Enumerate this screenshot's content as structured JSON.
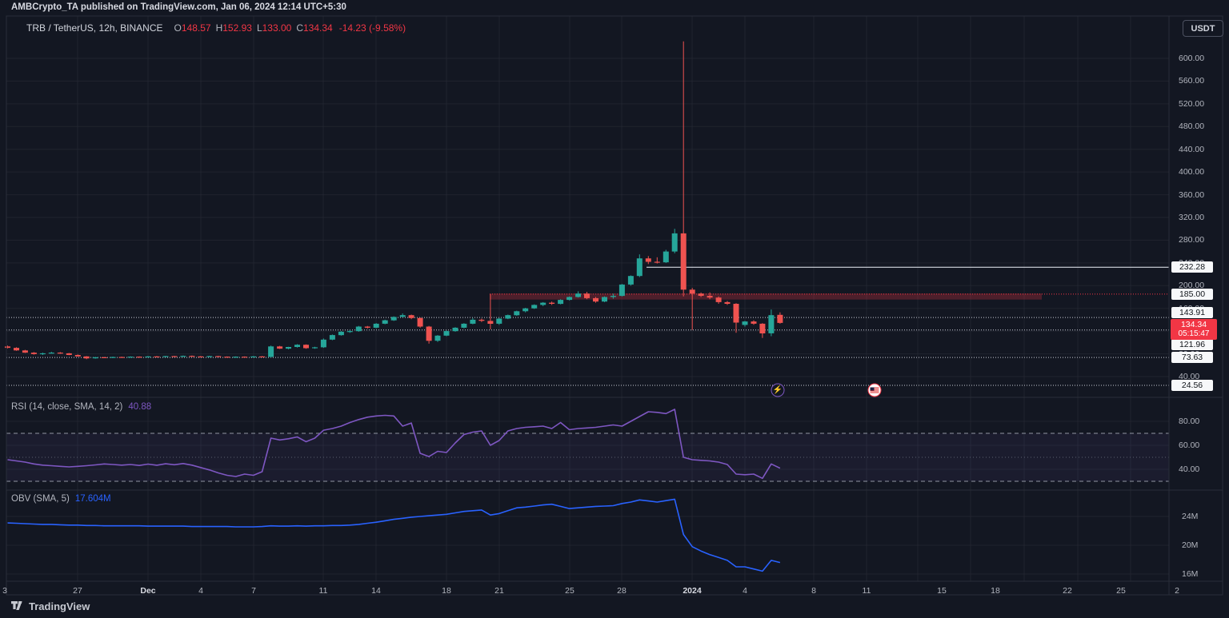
{
  "publish_bar": {
    "text": "AMBCrypto_TA published on TradingView.com, Jan 06, 2024 12:14 UTC+5:30"
  },
  "toolbar": {
    "currency_button": "USDT"
  },
  "legend": {
    "symbol": "TRB / TetherUS, 12h, BINANCE",
    "open_label": "O",
    "open": "148.57",
    "high_label": "H",
    "high": "152.93",
    "low_label": "L",
    "low": "133.00",
    "close_label": "C",
    "close": "134.34",
    "change": "-14.23 (-9.58%)"
  },
  "rsi_pane_header": {
    "title": "RSI (14, close, SMA, 14, 2)",
    "value": "40.88"
  },
  "obv_pane_header": {
    "title": "OBV (SMA, 5)",
    "value": "17.604M"
  },
  "footer": {
    "brand": "TradingView"
  },
  "colors": {
    "background": "#131722",
    "grid": "rgba(42,46,57,0.55)",
    "border": "#2a2e39",
    "axis_text": "#b2b5be",
    "up": "#26a69a",
    "down": "#ef5350",
    "level_red": "#f23645",
    "level_white": "#c9ccd6",
    "solid_white": "#f0f3fa",
    "rsi_purple": "#7e57c2",
    "obv_blue": "#2962ff",
    "last_price_bg": "#f23645",
    "label_box_bg": "#f7f8fa",
    "label_box_text": "#101419"
  },
  "chart_data": {
    "type": "candlestick",
    "symbol": "TRB/USDT",
    "timeframe": "12h",
    "exchange": "BINANCE",
    "layout": {
      "chart_left": 8,
      "chart_right": 1461,
      "outer_right": 1528,
      "pane_main_top": 20,
      "pane_main_bottom": 497,
      "pane_rsi_top": 497,
      "pane_rsi_bottom": 613,
      "pane_obv_top": 613,
      "pane_obv_bottom": 727,
      "axis_bottom": 744,
      "price_scale": {
        "p1": 600,
        "y1": 73,
        "p2": 40,
        "y2": 471
      },
      "x_scale": {
        "x0": 9.5,
        "step": 10.97
      },
      "rsi_scale": {
        "v1": 70,
        "y1": 542,
        "v2": 30,
        "y2": 602
      },
      "obv_scale": {
        "v1": 24,
        "y1": 646,
        "v2": 16,
        "y2": 718
      }
    },
    "price_pane": {
      "grid_prices": [
        600,
        560,
        520,
        480,
        440,
        400,
        360,
        320,
        280,
        240,
        200,
        160,
        120,
        80,
        40
      ],
      "axis_tick_format": ".00",
      "candles": [
        [
          93,
          94.5,
          89.5,
          90.5
        ],
        [
          90.5,
          91.5,
          85.5,
          86
        ],
        [
          86,
          87,
          81.5,
          82
        ],
        [
          82,
          83,
          78.5,
          79.5
        ],
        [
          79.5,
          82,
          78,
          81
        ],
        [
          81,
          83.5,
          80.5,
          82
        ],
        [
          82,
          83,
          80,
          81
        ],
        [
          81,
          81.5,
          77.5,
          78
        ],
        [
          78,
          79,
          75,
          75.5
        ],
        [
          75.5,
          76,
          70.5,
          72
        ],
        [
          72,
          74.5,
          71.5,
          74
        ],
        [
          74,
          74.5,
          72.5,
          73
        ],
        [
          73,
          75,
          72.5,
          74.5
        ],
        [
          74.5,
          75,
          73,
          73.5
        ],
        [
          73.5,
          75.5,
          73,
          75
        ],
        [
          75,
          75.5,
          73.5,
          74
        ],
        [
          74,
          76,
          73.5,
          75.5
        ],
        [
          75.5,
          76,
          74,
          74.5
        ],
        [
          74.5,
          76.5,
          74,
          76
        ],
        [
          76,
          76.5,
          74.5,
          75
        ],
        [
          75,
          77,
          74.5,
          76.5
        ],
        [
          76.5,
          77,
          75,
          75.5
        ],
        [
          75.5,
          76,
          74,
          74.5
        ],
        [
          74.5,
          76.5,
          74,
          76
        ],
        [
          76,
          76.5,
          74.5,
          75
        ],
        [
          75,
          75.5,
          73,
          73.5
        ],
        [
          73.5,
          75.5,
          73,
          75
        ],
        [
          75,
          75.5,
          73.5,
          74
        ],
        [
          74,
          76,
          73.5,
          75.5
        ],
        [
          75.5,
          76,
          74,
          74.5
        ],
        [
          74.5,
          94.5,
          73,
          93
        ],
        [
          93,
          94,
          88.5,
          89
        ],
        [
          89,
          92.5,
          88,
          92
        ],
        [
          92,
          97,
          91,
          96
        ],
        [
          96,
          96.5,
          89,
          90
        ],
        [
          90,
          92.5,
          89,
          91.5
        ],
        [
          91.5,
          107,
          90.5,
          105
        ],
        [
          105,
          114,
          104,
          113
        ],
        [
          113,
          120,
          112,
          119
        ],
        [
          119,
          122,
          117,
          120
        ],
        [
          120,
          129,
          119,
          128
        ],
        [
          128,
          129,
          124.5,
          126
        ],
        [
          126,
          134,
          125,
          133
        ],
        [
          133,
          140,
          132,
          139
        ],
        [
          139,
          146,
          138,
          145
        ],
        [
          145,
          151,
          144,
          148
        ],
        [
          148,
          149,
          141,
          143
        ],
        [
          143,
          144,
          126,
          128
        ],
        [
          128,
          129,
          98,
          103
        ],
        [
          103,
          113,
          101,
          112
        ],
        [
          112,
          121,
          111,
          120
        ],
        [
          120,
          127,
          119,
          126
        ],
        [
          126,
          134,
          125,
          133
        ],
        [
          133,
          143,
          132,
          140
        ],
        [
          140,
          142,
          136,
          138
        ],
        [
          138,
          185,
          123,
          133
        ],
        [
          133,
          143,
          131,
          142
        ],
        [
          142,
          149,
          141,
          148
        ],
        [
          148,
          156,
          147,
          155
        ],
        [
          155,
          161,
          153,
          160
        ],
        [
          160,
          167,
          159,
          166
        ],
        [
          166,
          171,
          164,
          170
        ],
        [
          170,
          172,
          166,
          168
        ],
        [
          168,
          176,
          167,
          175
        ],
        [
          175,
          181,
          174,
          180
        ],
        [
          180,
          190,
          179,
          186
        ],
        [
          186,
          189,
          176,
          178
        ],
        [
          178,
          180,
          170,
          172
        ],
        [
          172,
          181,
          171,
          180
        ],
        [
          180,
          186,
          177,
          182
        ],
        [
          182,
          203,
          181,
          202
        ],
        [
          202,
          218,
          200,
          217
        ],
        [
          217,
          255,
          215,
          248
        ],
        [
          248,
          252,
          238,
          242
        ],
        [
          242,
          250,
          239,
          241
        ],
        [
          241,
          263,
          240,
          260
        ],
        [
          260,
          300,
          257,
          292
        ],
        [
          292,
          630,
          181,
          193
        ],
        [
          193,
          196,
          122,
          186
        ],
        [
          186,
          188,
          180,
          182
        ],
        [
          182,
          188,
          176,
          179
        ],
        [
          179,
          181,
          168,
          171
        ],
        [
          171,
          173,
          166,
          168
        ],
        [
          168,
          169,
          117,
          135
        ],
        [
          131,
          138,
          128,
          137
        ],
        [
          137,
          139,
          131,
          133
        ],
        [
          133,
          134,
          108,
          116
        ],
        [
          116,
          158,
          111,
          148
        ],
        [
          148.57,
          152.93,
          133,
          134.34
        ]
      ],
      "levels": [
        {
          "price": 232.28,
          "style": "solid",
          "color": "white",
          "from_x": 808,
          "label": "232.28"
        },
        {
          "price": 185.0,
          "style": "dotted",
          "color": "red",
          "from_x": 612,
          "label": "185.00"
        },
        {
          "price": 143.91,
          "style": "dotted",
          "color": "white",
          "from_x": 8,
          "label": "143.91",
          "label_y": 391
        },
        {
          "price": 121.96,
          "style": "dotted",
          "color": "white",
          "from_x": 8,
          "label": "121.96",
          "label_y": 431
        },
        {
          "price": 73.63,
          "style": "dotted",
          "color": "white",
          "from_x": 8,
          "label": "73.63"
        },
        {
          "price": 24.56,
          "style": "dotted",
          "color": "white",
          "from_x": 8,
          "label": "24.56"
        }
      ],
      "zone": {
        "top_price": 186,
        "bottom_price": 175.5,
        "from_x": 612,
        "to_x": 1302
      },
      "last_price": {
        "value": "134.34",
        "countdown": "05:15:47",
        "price": 134.34
      }
    },
    "rsi_pane": {
      "title": "RSI (14, close, SMA, 14, 2)",
      "last_value": 40.88,
      "guides": {
        "upper": 70,
        "middle": 50,
        "lower": 30
      },
      "axis_ticks": [
        {
          "label": "80.00",
          "v": 80
        },
        {
          "label": "60.00",
          "v": 60
        },
        {
          "label": "40.00",
          "v": 40
        }
      ],
      "series": [
        48,
        47,
        46,
        44.5,
        43.5,
        43,
        42.5,
        42,
        42.5,
        43,
        43.7,
        44.5,
        44,
        43.5,
        44,
        43.2,
        44.3,
        43.4,
        44.6,
        43.8,
        44.8,
        43.5,
        41.5,
        39.5,
        37,
        35,
        34,
        36,
        35,
        38,
        66,
        64.5,
        65.5,
        67,
        63,
        66,
        72.6,
        74,
        76,
        79,
        81.5,
        83.5,
        84.5,
        85,
        84.5,
        76,
        78.6,
        53.3,
        50.6,
        55,
        54,
        62,
        69,
        71,
        72,
        60,
        64,
        72,
        74,
        75,
        75.5,
        76,
        74,
        79,
        73,
        74,
        74.5,
        75,
        76,
        77,
        76,
        80,
        84,
        88,
        87.5,
        86.5,
        90,
        50,
        48,
        47.5,
        47,
        46,
        44,
        36,
        35.5,
        36,
        32.5,
        44.5,
        40.9
      ]
    },
    "obv_pane": {
      "title": "OBV (SMA, 5)",
      "last_value": "17.604M",
      "axis_ticks": [
        {
          "label": "24M",
          "v": 24
        },
        {
          "label": "20M",
          "v": 20
        },
        {
          "label": "16M",
          "v": 16
        }
      ],
      "series_millions": [
        23.1,
        23.05,
        23.0,
        22.95,
        22.9,
        22.9,
        22.85,
        22.8,
        22.8,
        22.75,
        22.75,
        22.7,
        22.7,
        22.7,
        22.7,
        22.7,
        22.65,
        22.65,
        22.65,
        22.65,
        22.65,
        22.6,
        22.6,
        22.6,
        22.6,
        22.6,
        22.55,
        22.55,
        22.55,
        22.6,
        22.7,
        22.65,
        22.65,
        22.7,
        22.65,
        22.7,
        22.7,
        22.75,
        22.75,
        22.8,
        22.9,
        23.05,
        23.2,
        23.4,
        23.6,
        23.75,
        23.9,
        24.0,
        24.1,
        24.2,
        24.3,
        24.5,
        24.7,
        24.8,
        24.9,
        24.2,
        24.4,
        24.8,
        25.2,
        25.3,
        25.45,
        25.6,
        25.7,
        25.4,
        25.1,
        25.2,
        25.3,
        25.4,
        25.45,
        25.5,
        25.8,
        26.0,
        26.3,
        26.15,
        26.0,
        26.2,
        26.4,
        21.5,
        19.8,
        19.2,
        18.7,
        18.3,
        17.9,
        17.0,
        17.0,
        16.7,
        16.4,
        17.9,
        17.604
      ]
    },
    "x_axis": {
      "gridlines": [
        97,
        185,
        251,
        317,
        404,
        470,
        558,
        624,
        712,
        777,
        865,
        931,
        1017,
        1083,
        1147,
        1213,
        1280,
        1347,
        1413
      ],
      "labels": [
        {
          "text": "3",
          "x": 6
        },
        {
          "text": "27",
          "x": 97
        },
        {
          "text": "Dec",
          "x": 185,
          "bold": true
        },
        {
          "text": "4",
          "x": 251
        },
        {
          "text": "7",
          "x": 317
        },
        {
          "text": "11",
          "x": 404
        },
        {
          "text": "14",
          "x": 470
        },
        {
          "text": "18",
          "x": 558
        },
        {
          "text": "21",
          "x": 624
        },
        {
          "text": "25",
          "x": 712
        },
        {
          "text": "28",
          "x": 777
        },
        {
          "text": "2024",
          "x": 865,
          "bold": true
        },
        {
          "text": "4",
          "x": 931
        },
        {
          "text": "8",
          "x": 1017
        },
        {
          "text": "11",
          "x": 1083
        },
        {
          "text": "15",
          "x": 1177
        },
        {
          "text": "18",
          "x": 1244
        },
        {
          "text": "22",
          "x": 1334
        },
        {
          "text": "25",
          "x": 1401
        },
        {
          "text": "2",
          "x": 1471
        }
      ]
    },
    "events": [
      {
        "type": "lightning",
        "x": 972,
        "y": 488
      },
      {
        "type": "us-flag",
        "x": 1093,
        "y": 488
      }
    ]
  }
}
